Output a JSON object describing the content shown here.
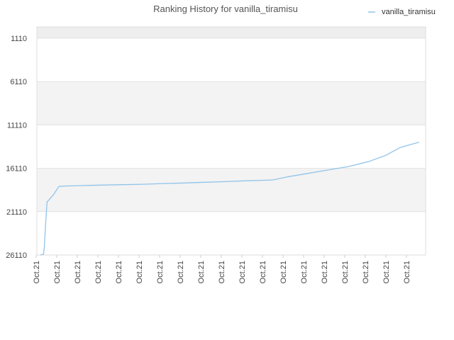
{
  "chart_data": {
    "type": "line",
    "title": "Ranking History for vanilla_tiramisu",
    "xlabel": "",
    "ylabel": "",
    "y_reversed": true,
    "ylim": [
      1110,
      26110
    ],
    "yticks": [
      1110,
      6110,
      11110,
      16110,
      21110,
      26110
    ],
    "xtick_labels": [
      "Oct.21",
      "Oct.21",
      "Oct.21",
      "Oct.21",
      "Oct.21",
      "Oct.21",
      "Oct.21",
      "Oct.21",
      "Oct.21",
      "Oct.21",
      "Oct.21",
      "Oct.21",
      "Oct.21",
      "Oct.21",
      "Oct.21",
      "Oct.21",
      "Oct.21",
      "Oct.21",
      "Oct.21"
    ],
    "grid": true,
    "legend_position": "top-right",
    "color": "#90c4ea",
    "series": [
      {
        "name": "vanilla_tiramisu",
        "x": [
          0,
          0.15,
          0.19,
          0.25,
          0.32,
          0.62,
          0.9,
          1.2,
          2,
          3,
          4,
          5,
          6,
          7,
          8,
          9,
          10,
          11,
          11.3,
          12,
          13,
          14,
          15,
          16,
          16.8,
          17.5,
          18.4
        ],
        "y": [
          26110,
          26000,
          25200,
          22500,
          20000,
          19200,
          18200,
          18150,
          18100,
          18050,
          18000,
          17950,
          17870,
          17800,
          17720,
          17650,
          17550,
          17480,
          17450,
          17100,
          16700,
          16300,
          15900,
          15300,
          14600,
          13700,
          13100
        ]
      }
    ]
  }
}
